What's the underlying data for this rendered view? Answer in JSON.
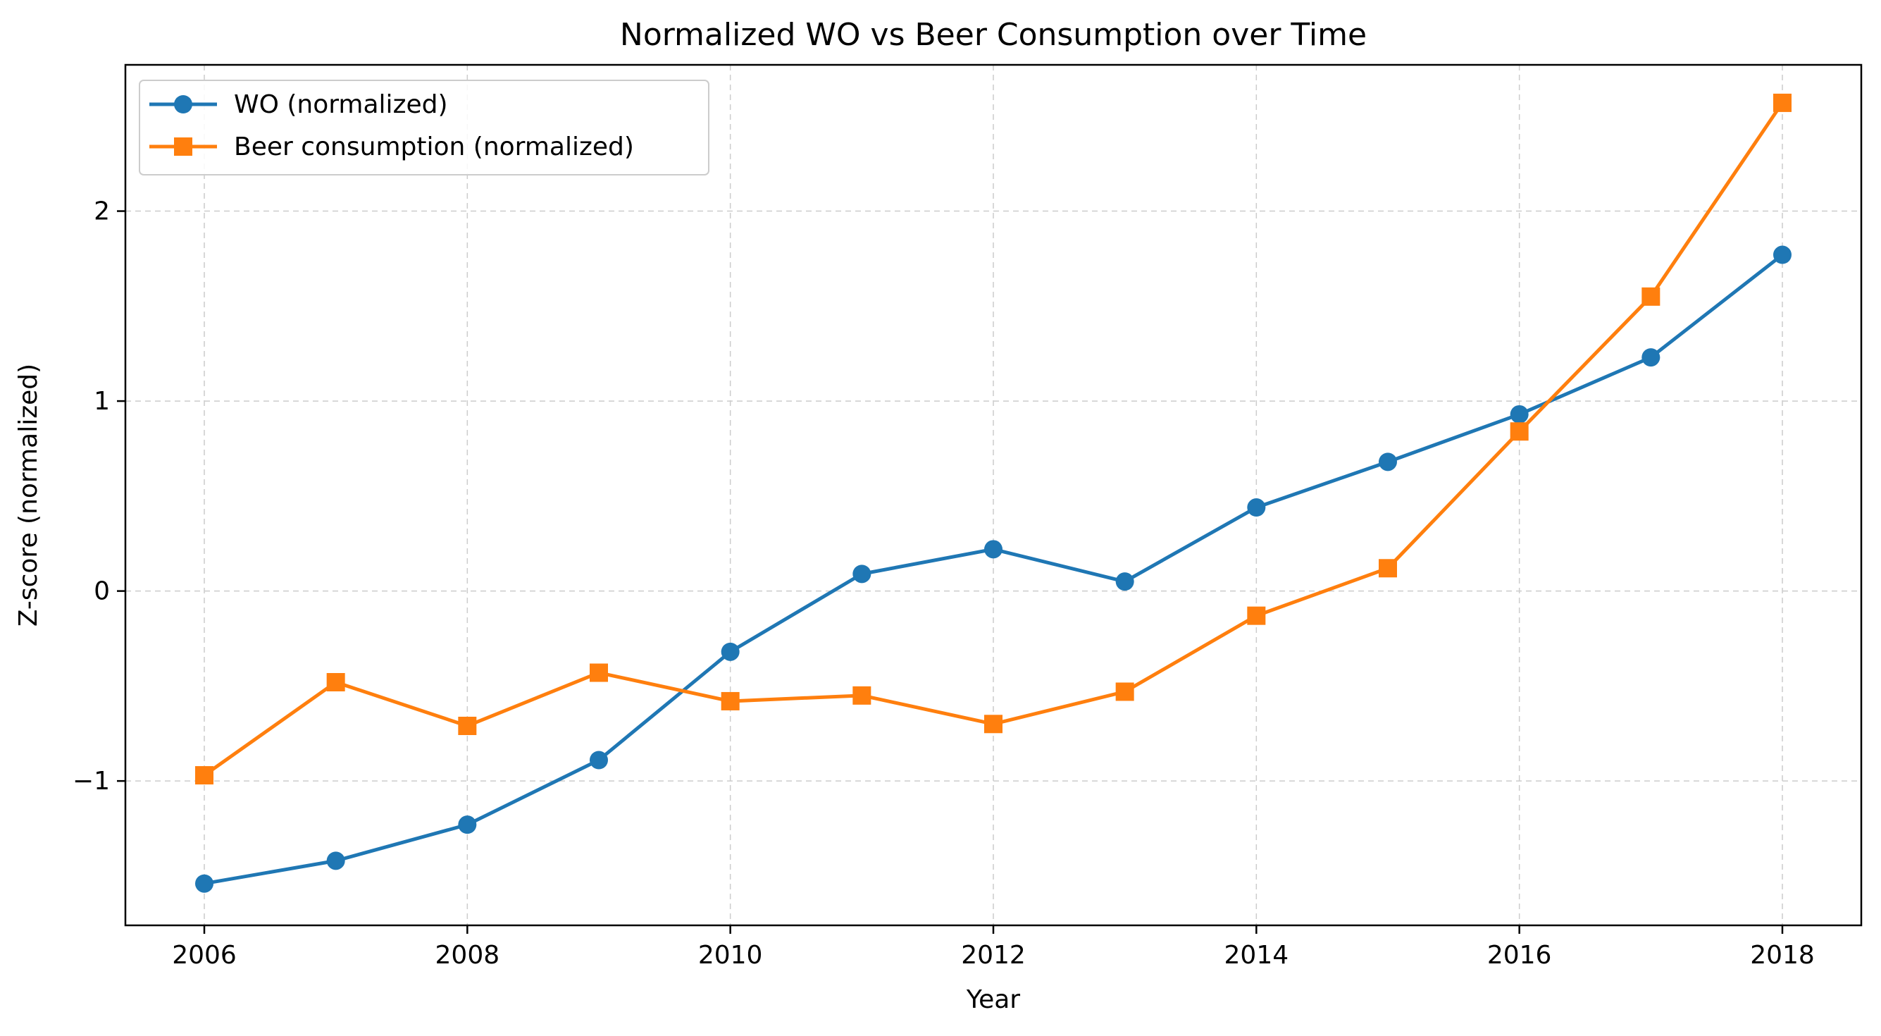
{
  "chart_data": {
    "type": "line",
    "title": "Normalized WO vs Beer Consumption over Time",
    "xlabel": "Year",
    "ylabel": "Z-score (normalized)",
    "x": [
      2006,
      2007,
      2008,
      2009,
      2010,
      2011,
      2012,
      2013,
      2014,
      2015,
      2016,
      2017,
      2018
    ],
    "xlim": [
      2005.4,
      2018.6
    ],
    "ylim": [
      -1.76,
      2.77
    ],
    "x_ticks": [
      2006,
      2008,
      2010,
      2012,
      2014,
      2016,
      2018
    ],
    "x_tick_labels": [
      "2006",
      "2008",
      "2010",
      "2012",
      "2014",
      "2016",
      "2018"
    ],
    "y_ticks": [
      -1,
      0,
      1,
      2
    ],
    "y_tick_labels": [
      "−1",
      "0",
      "1",
      "2"
    ],
    "grid": true,
    "legend_position": "top-left",
    "series": [
      {
        "name": "WO (normalized)",
        "color": "#1f77b4",
        "marker": "circle",
        "values": [
          -1.54,
          -1.42,
          -1.23,
          -0.89,
          -0.32,
          0.09,
          0.22,
          0.05,
          0.44,
          0.68,
          0.93,
          1.23,
          1.77
        ]
      },
      {
        "name": "Beer consumption (normalized)",
        "color": "#ff7f0e",
        "marker": "square",
        "values": [
          -0.97,
          -0.48,
          -0.71,
          -0.43,
          -0.58,
          -0.55,
          -0.7,
          -0.53,
          -0.13,
          0.12,
          0.84,
          1.55,
          2.57
        ]
      }
    ]
  }
}
